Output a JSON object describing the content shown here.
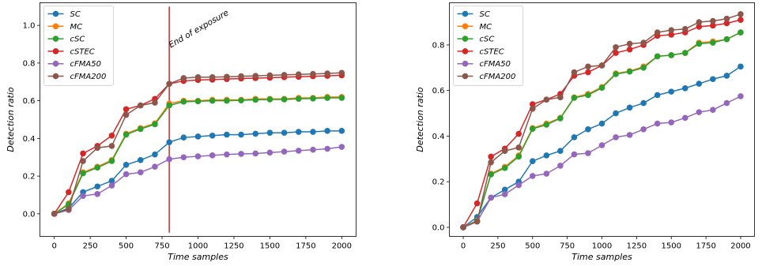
{
  "chart_data": [
    {
      "type": "line",
      "xlabel": "Time samples",
      "ylabel": "Detection ratio",
      "xlim": [
        -100,
        2100
      ],
      "ylim": [
        -0.12,
        1.12
      ],
      "xticks": [
        0,
        250,
        500,
        750,
        1000,
        1250,
        1500,
        1750,
        2000
      ],
      "yticks": [
        0.0,
        0.2,
        0.4,
        0.6,
        0.8,
        1.0
      ],
      "ytick_labels": [
        "0.0",
        "0.2",
        "0.4",
        "0.6",
        "0.8",
        "1.0"
      ],
      "legend_position": "upper-left",
      "x": [
        0,
        100,
        200,
        300,
        400,
        500,
        600,
        700,
        800,
        900,
        1000,
        1100,
        1200,
        1300,
        1400,
        1500,
        1600,
        1700,
        1800,
        1900,
        2000
      ],
      "series": [
        {
          "name": "SC",
          "color": "#1f77b4",
          "values": [
            0.0,
            0.03,
            0.115,
            0.145,
            0.175,
            0.26,
            0.285,
            0.315,
            0.38,
            0.405,
            0.41,
            0.415,
            0.42,
            0.42,
            0.425,
            0.43,
            0.43,
            0.435,
            0.435,
            0.44,
            0.44
          ]
        },
        {
          "name": "MC",
          "color": "#ff7f0e",
          "values": [
            0.0,
            0.055,
            0.22,
            0.25,
            0.285,
            0.425,
            0.455,
            0.48,
            0.585,
            0.6,
            0.6,
            0.605,
            0.605,
            0.605,
            0.61,
            0.61,
            0.61,
            0.615,
            0.615,
            0.62,
            0.62
          ]
        },
        {
          "name": "cSC",
          "color": "#2ca02c",
          "values": [
            0.0,
            0.05,
            0.215,
            0.245,
            0.28,
            0.42,
            0.45,
            0.475,
            0.575,
            0.595,
            0.597,
            0.6,
            0.6,
            0.602,
            0.605,
            0.607,
            0.607,
            0.61,
            0.612,
            0.615,
            0.615
          ]
        },
        {
          "name": "cSTEC",
          "color": "#d62728",
          "values": [
            0.0,
            0.115,
            0.32,
            0.36,
            0.415,
            0.555,
            0.575,
            0.61,
            0.69,
            0.705,
            0.71,
            0.712,
            0.715,
            0.718,
            0.72,
            0.722,
            0.725,
            0.727,
            0.73,
            0.732,
            0.735
          ]
        },
        {
          "name": "cFMA50",
          "color": "#9467bd",
          "values": [
            0.0,
            0.02,
            0.095,
            0.105,
            0.15,
            0.21,
            0.22,
            0.25,
            0.29,
            0.3,
            0.305,
            0.31,
            0.315,
            0.318,
            0.32,
            0.325,
            0.33,
            0.335,
            0.34,
            0.345,
            0.355
          ]
        },
        {
          "name": "cFMA200",
          "color": "#8c564b",
          "values": [
            0.0,
            0.025,
            0.28,
            0.35,
            0.36,
            0.525,
            0.575,
            0.59,
            0.69,
            0.72,
            0.725,
            0.725,
            0.727,
            0.73,
            0.732,
            0.735,
            0.737,
            0.74,
            0.742,
            0.745,
            0.748
          ]
        }
      ],
      "vline": {
        "x": 800,
        "ymin": -0.1,
        "ymax": 1.1,
        "color": "#d62728"
      },
      "annotation": {
        "text": "End of exposure",
        "x": 810,
        "y": 0.88
      }
    },
    {
      "type": "line",
      "xlabel": "Time samples",
      "ylabel": "Detection ratio",
      "xlim": [
        -100,
        2100
      ],
      "ylim": [
        -0.04,
        0.985
      ],
      "xticks": [
        0,
        250,
        500,
        750,
        1000,
        1250,
        1500,
        1750,
        2000
      ],
      "yticks": [
        0.0,
        0.2,
        0.4,
        0.6,
        0.8
      ],
      "ytick_labels": [
        "0.0",
        "0.2",
        "0.4",
        "0.6",
        "0.8"
      ],
      "legend_position": "upper-left",
      "x": [
        0,
        100,
        200,
        300,
        400,
        500,
        600,
        700,
        800,
        900,
        1000,
        1100,
        1200,
        1300,
        1400,
        1500,
        1600,
        1700,
        1800,
        1900,
        2000
      ],
      "series": [
        {
          "name": "SC",
          "color": "#1f77b4",
          "values": [
            0.0,
            0.045,
            0.13,
            0.165,
            0.2,
            0.29,
            0.315,
            0.335,
            0.395,
            0.43,
            0.455,
            0.5,
            0.525,
            0.545,
            0.58,
            0.595,
            0.61,
            0.63,
            0.65,
            0.665,
            0.705
          ]
        },
        {
          "name": "MC",
          "color": "#ff7f0e",
          "values": [
            0.0,
            0.03,
            0.235,
            0.265,
            0.315,
            0.435,
            0.455,
            0.48,
            0.57,
            0.585,
            0.615,
            0.675,
            0.685,
            0.705,
            0.75,
            0.755,
            0.765,
            0.81,
            0.815,
            0.825,
            0.855
          ]
        },
        {
          "name": "cSC",
          "color": "#2ca02c",
          "values": [
            0.0,
            0.028,
            0.232,
            0.26,
            0.31,
            0.432,
            0.45,
            0.478,
            0.568,
            0.58,
            0.612,
            0.672,
            0.683,
            0.7,
            0.75,
            0.755,
            0.765,
            0.805,
            0.81,
            0.825,
            0.855
          ]
        },
        {
          "name": "cSTEC",
          "color": "#d62728",
          "values": [
            0.0,
            0.105,
            0.31,
            0.345,
            0.41,
            0.54,
            0.56,
            0.585,
            0.665,
            0.68,
            0.71,
            0.765,
            0.78,
            0.8,
            0.84,
            0.845,
            0.855,
            0.88,
            0.885,
            0.895,
            0.91
          ]
        },
        {
          "name": "cFMA50",
          "color": "#9467bd",
          "values": [
            0.0,
            0.025,
            0.13,
            0.145,
            0.185,
            0.225,
            0.235,
            0.27,
            0.32,
            0.325,
            0.36,
            0.395,
            0.405,
            0.43,
            0.455,
            0.46,
            0.48,
            0.505,
            0.515,
            0.545,
            0.575
          ]
        },
        {
          "name": "cFMA200",
          "color": "#8c564b",
          "values": [
            0.0,
            0.025,
            0.285,
            0.335,
            0.35,
            0.52,
            0.56,
            0.57,
            0.68,
            0.705,
            0.71,
            0.79,
            0.805,
            0.81,
            0.855,
            0.865,
            0.87,
            0.9,
            0.905,
            0.915,
            0.935
          ]
        }
      ]
    }
  ]
}
